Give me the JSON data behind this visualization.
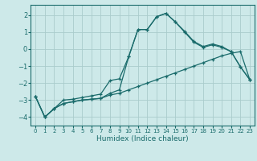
{
  "xlabel": "Humidex (Indice chaleur)",
  "background_color": "#cde9e9",
  "grid_color": "#aacccc",
  "line_color": "#1a6b6b",
  "xlim": [
    -0.5,
    23.5
  ],
  "ylim": [
    -4.5,
    2.6
  ],
  "yticks": [
    -4,
    -3,
    -2,
    -1,
    0,
    1,
    2
  ],
  "xticks": [
    0,
    1,
    2,
    3,
    4,
    5,
    6,
    7,
    8,
    9,
    10,
    11,
    12,
    13,
    14,
    15,
    16,
    17,
    18,
    19,
    20,
    21,
    22,
    23
  ],
  "line1_x": [
    0,
    1,
    2,
    3,
    4,
    5,
    6,
    7,
    8,
    9,
    10,
    11,
    12,
    13,
    14,
    15,
    16,
    17,
    18,
    19,
    20,
    21,
    22,
    23
  ],
  "line1_y": [
    -2.8,
    -4.0,
    -3.5,
    -3.0,
    -2.95,
    -2.85,
    -2.75,
    -2.65,
    -1.85,
    -1.75,
    -0.45,
    1.15,
    1.15,
    1.9,
    2.1,
    1.6,
    1.05,
    0.45,
    0.15,
    0.3,
    0.15,
    -0.15,
    -1.05,
    -1.8
  ],
  "line2_x": [
    0,
    1,
    2,
    3,
    4,
    5,
    6,
    7,
    8,
    9,
    10,
    11,
    12,
    13,
    14,
    15,
    16,
    17,
    18,
    19,
    20,
    21,
    22,
    23
  ],
  "line2_y": [
    -2.8,
    -4.0,
    -3.5,
    -3.2,
    -3.1,
    -3.0,
    -2.95,
    -2.9,
    -2.7,
    -2.6,
    -2.4,
    -2.2,
    -2.0,
    -1.8,
    -1.6,
    -1.4,
    -1.2,
    -1.0,
    -0.8,
    -0.6,
    -0.4,
    -0.25,
    -0.15,
    -1.8
  ],
  "line3_x": [
    0,
    1,
    2,
    3,
    4,
    5,
    6,
    7,
    8,
    9,
    10,
    11,
    12,
    13,
    14,
    15,
    16,
    17,
    18,
    19,
    20,
    21,
    22,
    23
  ],
  "line3_y": [
    -2.8,
    -4.0,
    -3.5,
    -3.2,
    -3.1,
    -3.0,
    -2.95,
    -2.9,
    -2.6,
    -2.4,
    -0.45,
    1.15,
    1.15,
    1.9,
    2.1,
    1.6,
    1.0,
    0.4,
    0.1,
    0.25,
    0.1,
    -0.15,
    -1.05,
    -1.8
  ]
}
